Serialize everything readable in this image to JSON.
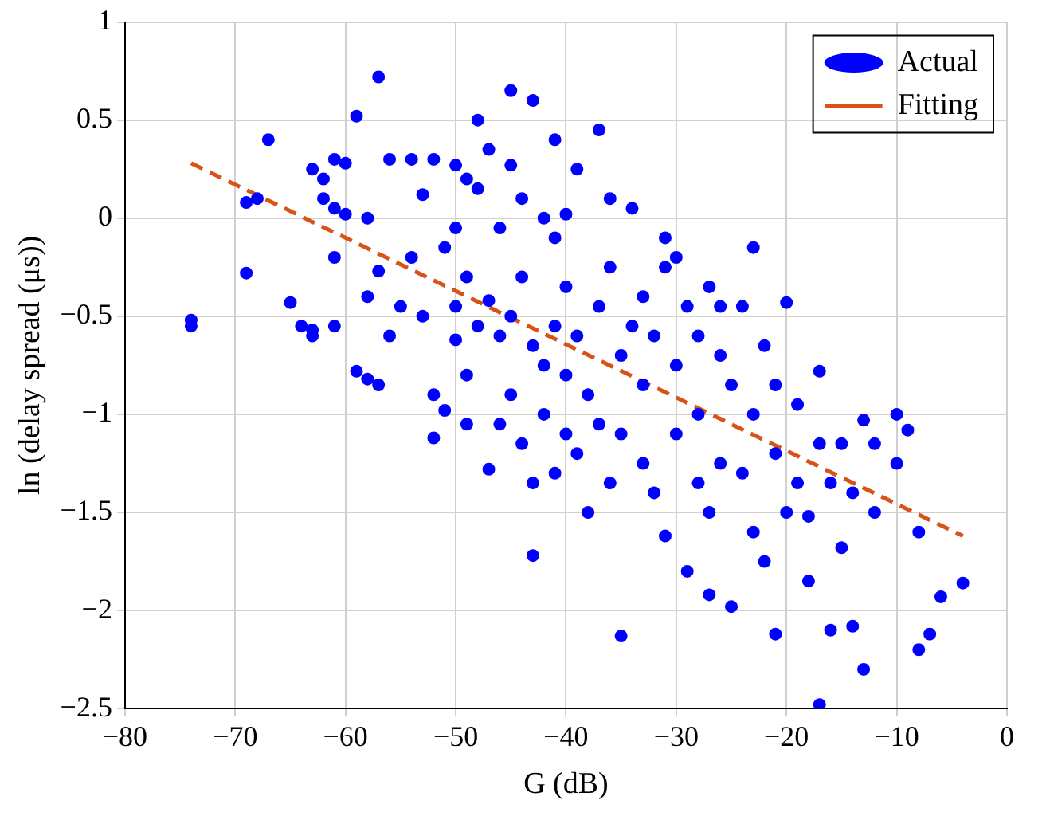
{
  "chart_data": {
    "type": "scatter",
    "xlabel": "G (dB)",
    "ylabel": "ln (delay spread (μs))",
    "xlim": [
      -80,
      0
    ],
    "xticks": [
      -80,
      -70,
      -60,
      -50,
      -40,
      -30,
      -20,
      -10,
      0
    ],
    "ylim": [
      -2.5,
      1
    ],
    "yticks": [
      -2.5,
      -2,
      -1.5,
      -1,
      -0.5,
      0,
      0.5,
      1
    ],
    "grid": true,
    "legend": "top right",
    "series": [
      {
        "name": "Actual",
        "type": "scatter",
        "marker": "circle",
        "color": "#0000ff",
        "x": [
          -74,
          -74,
          -69,
          -69,
          -68,
          -67,
          -65,
          -64,
          -63,
          -63,
          -63,
          -62,
          -62,
          -61,
          -61,
          -61,
          -61,
          -60,
          -60,
          -59,
          -59,
          -58,
          -58,
          -58,
          -57,
          -57,
          -57,
          -56,
          -56,
          -55,
          -54,
          -54,
          -53,
          -53,
          -52,
          -52,
          -52,
          -51,
          -51,
          -50,
          -50,
          -50,
          -50,
          -49,
          -49,
          -49,
          -49,
          -48,
          -48,
          -48,
          -47,
          -47,
          -47,
          -46,
          -46,
          -46,
          -45,
          -45,
          -45,
          -45,
          -44,
          -44,
          -44,
          -43,
          -43,
          -43,
          -43,
          -42,
          -42,
          -42,
          -41,
          -41,
          -41,
          -41,
          -40,
          -40,
          -40,
          -40,
          -39,
          -39,
          -39,
          -38,
          -38,
          -37,
          -37,
          -37,
          -36,
          -36,
          -36,
          -35,
          -35,
          -35,
          -34,
          -34,
          -33,
          -33,
          -33,
          -32,
          -32,
          -31,
          -31,
          -31,
          -30,
          -30,
          -30,
          -29,
          -29,
          -28,
          -28,
          -28,
          -27,
          -27,
          -27,
          -26,
          -26,
          -26,
          -25,
          -25,
          -24,
          -24,
          -23,
          -23,
          -23,
          -22,
          -22,
          -21,
          -21,
          -21,
          -20,
          -20,
          -19,
          -19,
          -18,
          -18,
          -17,
          -17,
          -17,
          -16,
          -16,
          -15,
          -15,
          -14,
          -14,
          -13,
          -13,
          -12,
          -12,
          -10,
          -10,
          -9,
          -8,
          -8,
          -7,
          -6,
          -4
        ],
        "values": [
          -0.52,
          -0.55,
          -0.28,
          0.08,
          0.1,
          0.4,
          -0.43,
          -0.55,
          -0.6,
          -0.57,
          0.25,
          0.1,
          0.2,
          0.3,
          -0.2,
          0.05,
          -0.55,
          0.02,
          0.28,
          0.52,
          -0.78,
          -0.82,
          -0.4,
          0,
          -0.85,
          0.72,
          -0.27,
          0.3,
          -0.6,
          -0.45,
          0.3,
          -0.2,
          -0.5,
          0.12,
          -1.12,
          -0.9,
          0.3,
          -0.15,
          -0.98,
          0.27,
          -0.05,
          -0.45,
          -0.62,
          0.2,
          -0.3,
          -0.8,
          -1.05,
          -0.55,
          0.5,
          0.15,
          0.35,
          -1.28,
          -0.42,
          -0.6,
          -1.05,
          -0.05,
          0.65,
          -0.5,
          0.27,
          -0.9,
          -1.15,
          0.1,
          -0.3,
          0.6,
          -1.72,
          -1.35,
          -0.65,
          -0.75,
          0,
          -1,
          0.4,
          -0.1,
          -0.55,
          -1.3,
          -0.8,
          -1.1,
          -0.35,
          0.02,
          -1.2,
          0.25,
          -0.6,
          -1.5,
          -0.9,
          0.45,
          -0.45,
          -1.05,
          0.1,
          -0.25,
          -1.35,
          -0.7,
          -2.13,
          -1.1,
          -0.55,
          0.05,
          -1.25,
          -0.4,
          -0.85,
          -1.4,
          -0.6,
          -0.1,
          -1.62,
          -0.25,
          -0.75,
          -1.1,
          -0.2,
          -1.8,
          -0.45,
          -1.35,
          -0.6,
          -1,
          -1.92,
          -0.35,
          -1.5,
          -0.7,
          -1.25,
          -0.45,
          -0.85,
          -1.98,
          -1.3,
          -0.45,
          -1.6,
          -1,
          -0.15,
          -0.65,
          -1.75,
          -2.12,
          -0.85,
          -1.2,
          -0.43,
          -1.5,
          -1.35,
          -0.95,
          -1.85,
          -1.52,
          -2.48,
          -1.15,
          -0.78,
          -2.1,
          -1.35,
          -1.15,
          -1.68,
          -2.08,
          -1.4,
          -2.3,
          -1.03,
          -1.5,
          -1.15,
          -1.25,
          -1,
          -1.08,
          -1.6,
          -2.2,
          -2.12,
          -1.93,
          -1.86
        ]
      },
      {
        "name": "Fitting",
        "type": "line",
        "marker": "none",
        "color": "#d95319",
        "line_style": "dashed",
        "x": [
          -74,
          -4
        ],
        "values": [
          0.28,
          -1.62
        ]
      }
    ]
  }
}
